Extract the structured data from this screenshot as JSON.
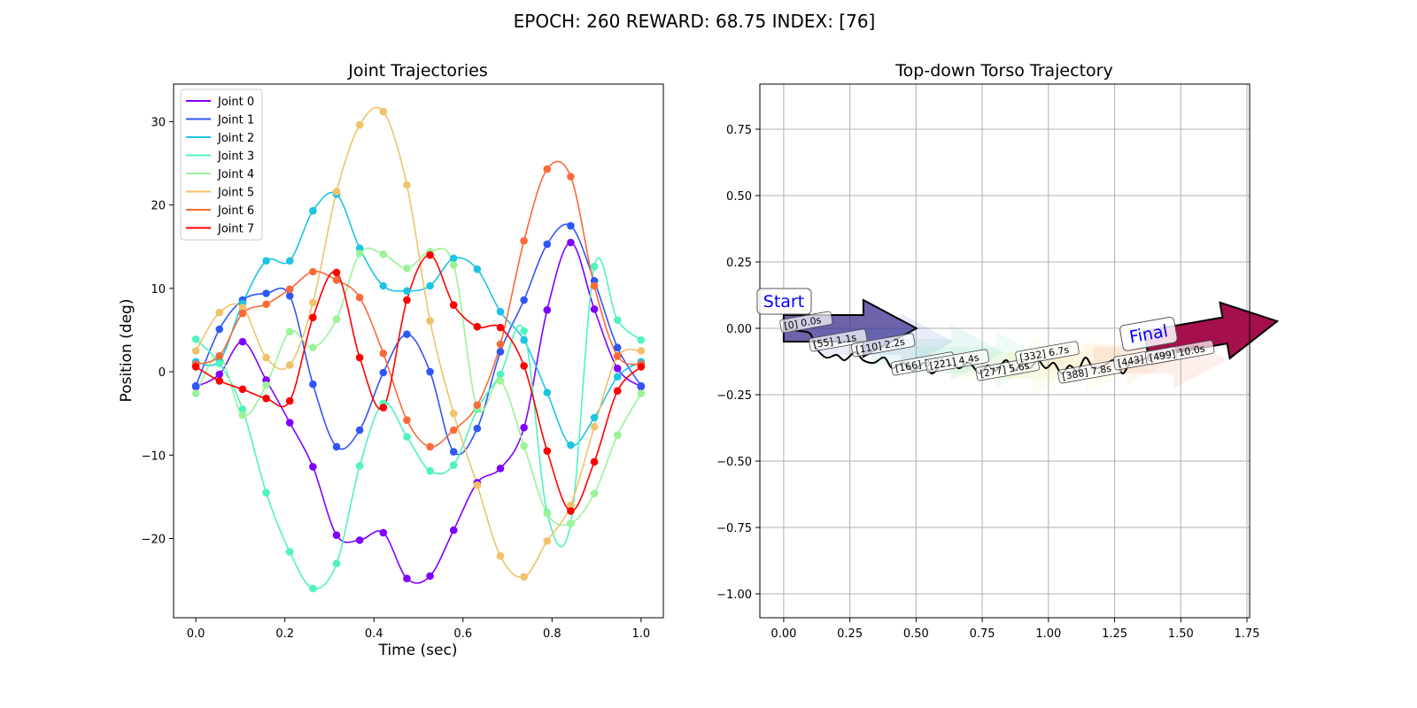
{
  "figure": {
    "suptitle": "EPOCH: 260 REWARD:  68.75 INDEX: [76]"
  },
  "chart_data": [
    {
      "type": "line",
      "title": "Joint Trajectories",
      "xlabel": "Time (sec)",
      "ylabel": "Position (deg)",
      "xlim": [
        -0.05,
        1.05
      ],
      "ylim": [
        -29.5,
        34.5
      ],
      "xticks": [
        0.0,
        0.2,
        0.4,
        0.6,
        0.8,
        1.0
      ],
      "xtick_labels": [
        "0.0",
        "0.2",
        "0.4",
        "0.6",
        "0.8",
        "1.0"
      ],
      "yticks": [
        -20,
        -10,
        0,
        10,
        20,
        30
      ],
      "ytick_labels": [
        "−20",
        "−10",
        "0",
        "10",
        "20",
        "30"
      ],
      "grid": false,
      "legend_position": "top-left",
      "x": [
        0.0,
        0.053,
        0.105,
        0.158,
        0.211,
        0.263,
        0.316,
        0.368,
        0.421,
        0.474,
        0.526,
        0.579,
        0.632,
        0.684,
        0.737,
        0.789,
        0.842,
        0.895,
        0.947,
        1.0
      ],
      "series": [
        {
          "name": "Joint 0",
          "color": "#8000ff",
          "values": [
            -1.8,
            -0.3,
            3.6,
            -1.0,
            -6.1,
            -11.4,
            -19.6,
            -20.2,
            -19.3,
            -24.8,
            -24.5,
            -19.0,
            -13.3,
            -11.6,
            -6.7,
            7.4,
            15.5,
            7.5,
            0.4,
            -1.8
          ]
        },
        {
          "name": "Joint 1",
          "color": "#3056f6",
          "values": [
            -1.7,
            5.1,
            8.6,
            9.4,
            9.1,
            -1.5,
            -9.0,
            -7.0,
            -0.1,
            4.5,
            0.0,
            -9.6,
            -6.8,
            2.4,
            8.6,
            15.3,
            17.5,
            10.9,
            2.9,
            -1.7
          ]
        },
        {
          "name": "Joint 2",
          "color": "#1bc4e2",
          "values": [
            1.2,
            1.3,
            8.2,
            13.3,
            13.3,
            19.3,
            21.3,
            14.8,
            10.3,
            9.7,
            10.3,
            13.6,
            12.3,
            7.2,
            3.8,
            -2.5,
            -8.8,
            -5.5,
            -0.6,
            1.2
          ]
        },
        {
          "name": "Joint 3",
          "color": "#4ef4bc",
          "values": [
            3.9,
            1.0,
            -4.5,
            -14.5,
            -21.6,
            -26.0,
            -23.0,
            -11.3,
            -3.8,
            -7.8,
            -11.9,
            -11.2,
            -4.5,
            -0.3,
            4.9,
            -16.9,
            -18.2,
            12.6,
            6.2,
            3.8
          ]
        },
        {
          "name": "Joint 4",
          "color": "#9af396",
          "values": [
            -2.6,
            1.9,
            -5.2,
            -1.6,
            4.8,
            2.9,
            6.3,
            14.2,
            14.1,
            12.4,
            14.4,
            12.8,
            -4.3,
            -1.1,
            -8.9,
            -17.0,
            -18.2,
            -14.6,
            -7.6,
            -2.6
          ]
        },
        {
          "name": "Joint 5",
          "color": "#f0c26a",
          "values": [
            2.5,
            7.1,
            7.7,
            1.7,
            0.8,
            8.3,
            21.6,
            29.6,
            31.2,
            22.4,
            6.1,
            -5.0,
            -13.6,
            -22.1,
            -24.6,
            -20.3,
            -16.0,
            -6.6,
            1.8,
            2.5
          ]
        },
        {
          "name": "Joint 6",
          "color": "#fa6a38",
          "values": [
            0.9,
            1.9,
            7.0,
            8.1,
            9.9,
            12.0,
            11.0,
            8.9,
            2.2,
            -5.8,
            -9.0,
            -7.0,
            -4.0,
            3.3,
            15.7,
            24.3,
            23.4,
            10.3,
            1.9,
            0.9
          ]
        },
        {
          "name": "Joint 7",
          "color": "#ff0000",
          "values": [
            0.6,
            -1.1,
            -2.1,
            -3.2,
            -3.5,
            6.5,
            11.9,
            1.7,
            -4.3,
            8.6,
            14.0,
            8.0,
            5.4,
            5.3,
            0.7,
            -9.5,
            -16.7,
            -10.8,
            -2.3,
            0.6
          ]
        }
      ]
    },
    {
      "type": "scatter",
      "title": "Top-down Torso Trajectory",
      "xlabel": "",
      "ylabel": "",
      "xlim": [
        -0.09,
        1.76
      ],
      "ylim": [
        -1.09,
        0.92
      ],
      "xticks": [
        0.0,
        0.25,
        0.5,
        0.75,
        1.0,
        1.25,
        1.5,
        1.75
      ],
      "xtick_labels": [
        "0.00",
        "0.25",
        "0.50",
        "0.75",
        "1.00",
        "1.25",
        "1.50",
        "1.75"
      ],
      "yticks": [
        -1.0,
        -0.75,
        -0.5,
        -0.25,
        0.0,
        0.25,
        0.5,
        0.75
      ],
      "ytick_labels": [
        "−1.00",
        "−0.75",
        "−0.50",
        "−0.25",
        "0.00",
        "0.25",
        "0.50",
        "0.75"
      ],
      "grid": true,
      "path": [
        [
          0.0,
          0.0
        ],
        [
          0.06,
          -0.01
        ],
        [
          0.1,
          -0.02
        ],
        [
          0.12,
          -0.07
        ],
        [
          0.16,
          -0.11
        ],
        [
          0.2,
          -0.1
        ],
        [
          0.23,
          -0.12
        ],
        [
          0.27,
          -0.09
        ],
        [
          0.3,
          -0.12
        ],
        [
          0.34,
          -0.13
        ],
        [
          0.38,
          -0.11
        ],
        [
          0.41,
          -0.15
        ],
        [
          0.45,
          -0.13
        ],
        [
          0.49,
          -0.16
        ],
        [
          0.53,
          -0.13
        ],
        [
          0.56,
          -0.17
        ],
        [
          0.6,
          -0.13
        ],
        [
          0.63,
          -0.11
        ],
        [
          0.66,
          -0.15
        ],
        [
          0.7,
          -0.13
        ],
        [
          0.74,
          -0.17
        ],
        [
          0.77,
          -0.14
        ],
        [
          0.8,
          -0.16
        ],
        [
          0.84,
          -0.12
        ],
        [
          0.87,
          -0.16
        ],
        [
          0.9,
          -0.13
        ],
        [
          0.93,
          -0.15
        ],
        [
          0.96,
          -0.12
        ],
        [
          0.99,
          -0.15
        ],
        [
          1.02,
          -0.13
        ],
        [
          1.05,
          -0.17
        ],
        [
          1.08,
          -0.14
        ],
        [
          1.11,
          -0.16
        ],
        [
          1.14,
          -0.11
        ],
        [
          1.17,
          -0.15
        ],
        [
          1.21,
          -0.14
        ],
        [
          1.25,
          -0.12
        ],
        [
          1.28,
          -0.17
        ],
        [
          1.31,
          -0.13
        ],
        [
          1.35,
          -0.12
        ],
        [
          1.4,
          -0.1
        ],
        [
          1.45,
          -0.09
        ],
        [
          1.5,
          -0.08
        ],
        [
          1.55,
          -0.07
        ]
      ],
      "arrows": [
        {
          "x": 0.0,
          "y": 0.0,
          "color": "#3b2f8f",
          "alpha": 0.75,
          "outlined": true
        },
        {
          "x": 0.14,
          "y": -0.05,
          "color": "#4c6fc8",
          "alpha": 0.12,
          "outlined": false
        },
        {
          "x": 0.33,
          "y": -0.09,
          "color": "#5bbfbf",
          "alpha": 0.12,
          "outlined": false
        },
        {
          "x": 0.5,
          "y": -0.12,
          "color": "#7fe0a8",
          "alpha": 0.12,
          "outlined": false
        },
        {
          "x": 0.64,
          "y": -0.14,
          "color": "#d7ee8a",
          "alpha": 0.12,
          "outlined": false
        },
        {
          "x": 0.84,
          "y": -0.14,
          "color": "#fdf0a0",
          "alpha": 0.12,
          "outlined": false
        },
        {
          "x": 0.99,
          "y": -0.11,
          "color": "#fbc47a",
          "alpha": 0.12,
          "outlined": false
        },
        {
          "x": 1.17,
          "y": -0.12,
          "color": "#f07c5a",
          "alpha": 0.12,
          "outlined": false
        },
        {
          "x": 1.37,
          "y": -0.06,
          "color": "#a50f4b",
          "alpha": 1.0,
          "outlined": true
        }
      ],
      "labels": [
        {
          "text": "[0] 0.0s",
          "x": 0.0,
          "y": 0.0
        },
        {
          "text": "[55] 1.1s",
          "x": 0.11,
          "y": -0.07
        },
        {
          "text": "[110] 2.2s",
          "x": 0.27,
          "y": -0.09
        },
        {
          "text": "[166] 3.3s",
          "x": 0.42,
          "y": -0.16
        },
        {
          "text": "[221] 4.4s",
          "x": 0.55,
          "y": -0.15
        },
        {
          "text": "[277] 5.6s",
          "x": 0.74,
          "y": -0.18
        },
        {
          "text": "[332] 6.7s",
          "x": 0.89,
          "y": -0.12
        },
        {
          "text": "[388] 7.8s",
          "x": 1.05,
          "y": -0.19
        },
        {
          "text": "[443] 8.9s",
          "x": 1.26,
          "y": -0.14
        },
        {
          "text": "[499] 10.0s",
          "x": 1.38,
          "y": -0.12
        }
      ],
      "start_label": "Start",
      "final_label": "Final",
      "annotation_text_color": "#0000ff"
    }
  ]
}
